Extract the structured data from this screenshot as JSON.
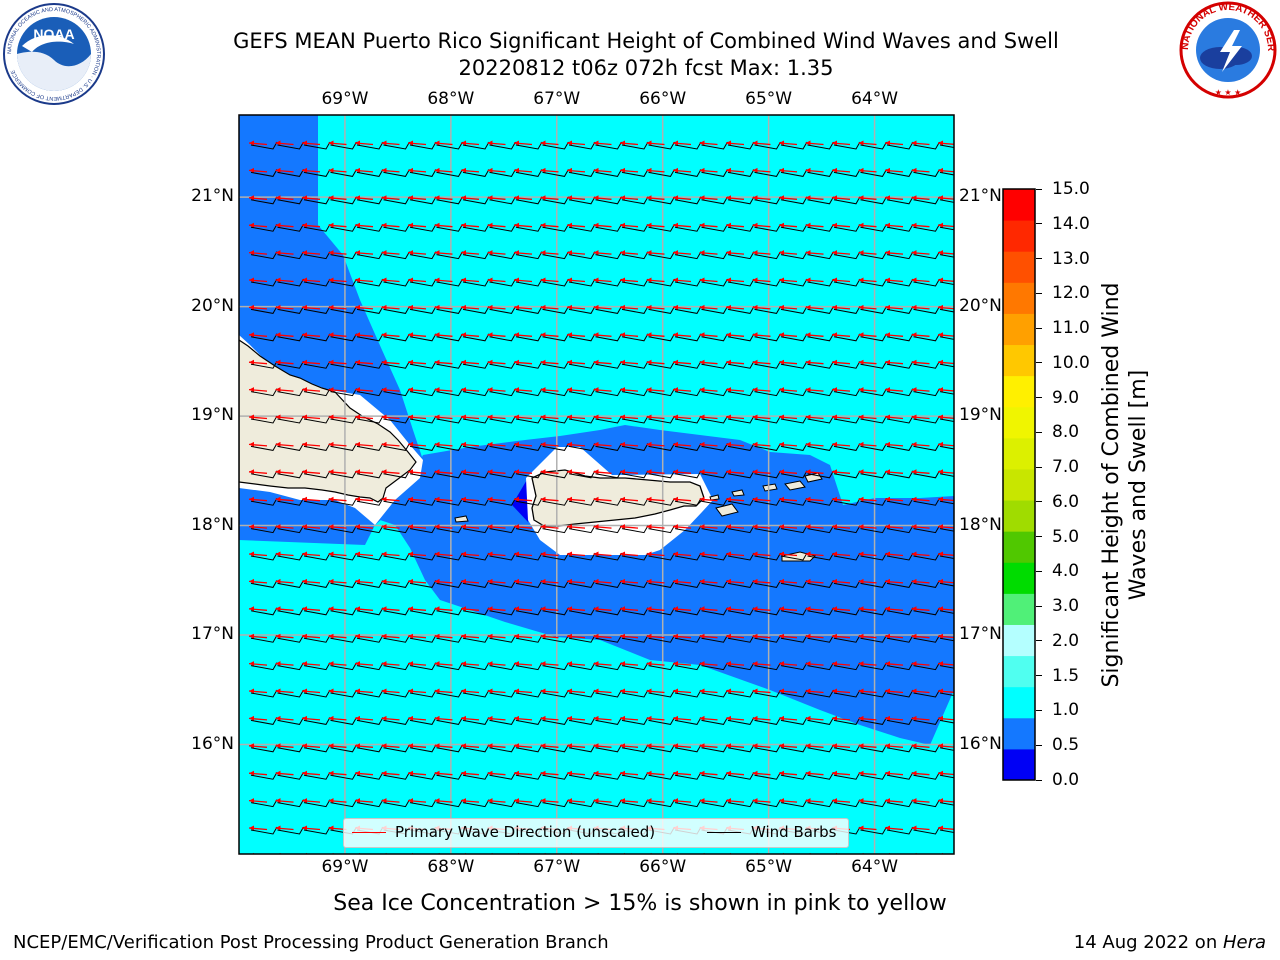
{
  "header": {
    "title_line1": "GEFS MEAN Puerto Rico Significant Height of Combined Wind Waves and Swell",
    "title_line2": "20220812 t06z 072h fcst   Max: 1.35"
  },
  "logos": {
    "noaa": {
      "center_text": "NOAA",
      "ring_text": "NATIONAL OCEANIC AND ATMOSPHERIC ADMINISTRATION · U.S. DEPARTMENT OF COMMERCE"
    },
    "nws": {
      "ring_text": "NATIONAL WEATHER SERVICE"
    }
  },
  "map": {
    "lon_labels": [
      "69°W",
      "68°W",
      "67°W",
      "66°W",
      "65°W",
      "64°W"
    ],
    "lat_labels": [
      "21°N",
      "20°N",
      "19°N",
      "18°N",
      "17°N",
      "16°N"
    ],
    "lon_values": [
      -69,
      -68,
      -67,
      -66,
      -65,
      -64
    ],
    "lat_values": [
      21,
      20,
      19,
      18,
      17,
      16
    ],
    "extent": {
      "lon_min": -70,
      "lon_max": -63.25,
      "lat_min": 15,
      "lat_max": 21.75
    },
    "wind_barbs": {
      "from": "east-northeast",
      "feathers": 1
    },
    "colors": {
      "field_0_5_to_1_0": "#1478ff",
      "field_1_0_to_1_5": "#00ffff",
      "field_0_0_to_0_5": "#0000f5",
      "land": "#efecdc",
      "no_data": "#ffffff",
      "wave_arrow": "#ff0000",
      "barb": "#000000",
      "gridline": "#b0b0b0"
    }
  },
  "legend": {
    "primary_wave": "Primary Wave Direction (unscaled)",
    "wind_barbs": "Wind Barbs"
  },
  "colorbar": {
    "label": "Significant Height of Combined Wind Waves and Swell [m]",
    "ticks": [
      "0.0",
      "0.5",
      "1.0",
      "1.5",
      "2.0",
      "3.0",
      "4.0",
      "5.0",
      "6.0",
      "7.0",
      "8.0",
      "9.0",
      "10.0",
      "11.0",
      "12.0",
      "13.0",
      "14.0",
      "15.0"
    ],
    "colors": [
      "#0000f5",
      "#1478ff",
      "#00ffff",
      "#50fff0",
      "#b4ffff",
      "#50f078",
      "#00dc00",
      "#50c800",
      "#a0dc00",
      "#c8e600",
      "#dcf000",
      "#f0f500",
      "#fff000",
      "#ffc800",
      "#ffa000",
      "#ff7800",
      "#ff5000",
      "#ff2800",
      "#ff0000"
    ]
  },
  "caption": "Sea Ice Concentration > 15% is shown in pink to yellow",
  "footer": {
    "left": "NCEP/EMC/Verification Post Processing Product Generation Branch",
    "right_date": "14 Aug 2022 on ",
    "right_machine": "Hera"
  }
}
